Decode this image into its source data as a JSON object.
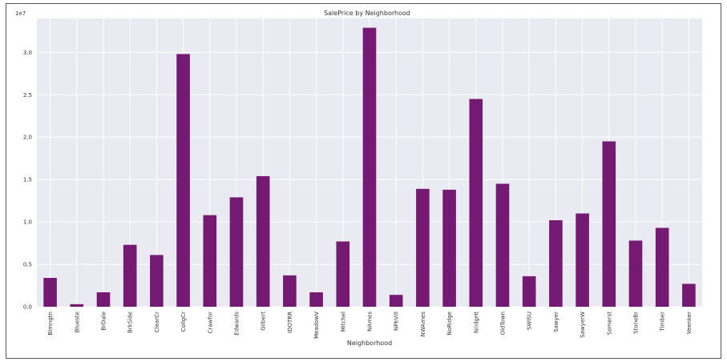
{
  "chart_data": {
    "type": "bar",
    "title": "SalePrice by Neighborhood",
    "xlabel": "Neighborhood",
    "ylabel": "",
    "offset_label": "1e7",
    "ylim": [
      0,
      3.4
    ],
    "yticks": [
      "0.0",
      "0.5",
      "1.0",
      "1.5",
      "2.0",
      "2.5",
      "3.0"
    ],
    "grid": true,
    "bar_color": "#741a72",
    "plot_background": "#eaeaf2",
    "categories": [
      "Blmngtn",
      "Blueste",
      "BrDale",
      "BrkSide",
      "ClearCr",
      "CollgCr",
      "Crawfor",
      "Edwards",
      "Gilbert",
      "IDOTRR",
      "MeadowV",
      "Mitchel",
      "NAmes",
      "NPkVill",
      "NWAmes",
      "NoRidge",
      "NridgHt",
      "OldTown",
      "SWISU",
      "Sawyer",
      "SawyerW",
      "Somerst",
      "StoneBr",
      "Timber",
      "Veenker"
    ],
    "values": [
      0.34,
      0.03,
      0.17,
      0.73,
      0.61,
      2.98,
      1.08,
      1.29,
      1.54,
      0.37,
      0.17,
      0.77,
      3.29,
      0.14,
      1.39,
      1.38,
      2.45,
      1.45,
      0.36,
      1.02,
      1.1,
      1.95,
      0.78,
      0.93,
      0.27
    ]
  }
}
